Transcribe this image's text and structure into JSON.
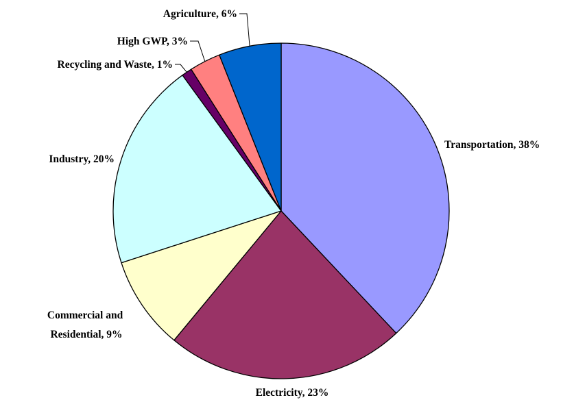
{
  "chart_data": {
    "type": "pie",
    "title": "",
    "slices": [
      {
        "label": "Transportation, 38%",
        "category": "Transportation",
        "value": 38,
        "color": "#9999FF"
      },
      {
        "label": "Electricity, 23%",
        "category": "Electricity",
        "value": 23,
        "color": "#993366"
      },
      {
        "label_lines": [
          "Commercial and",
          "Residential, 9%"
        ],
        "category": "Commercial and Residential",
        "value": 9,
        "color": "#FFFFCC"
      },
      {
        "label": "Industry, 20%",
        "category": "Industry",
        "value": 20,
        "color": "#CCFFFF"
      },
      {
        "label": "Recycling and Waste, 1%",
        "category": "Recycling and Waste",
        "value": 1,
        "color": "#660066"
      },
      {
        "label": "High GWP, 3%",
        "category": "High GWP",
        "value": 3,
        "color": "#FF8080"
      },
      {
        "label": "Agriculture, 6%",
        "category": "Agriculture",
        "value": 6,
        "color": "#0066CC"
      }
    ],
    "start_angle": "12 o'clock",
    "direction": "clockwise",
    "legend": "none",
    "border_color": "#000000"
  }
}
